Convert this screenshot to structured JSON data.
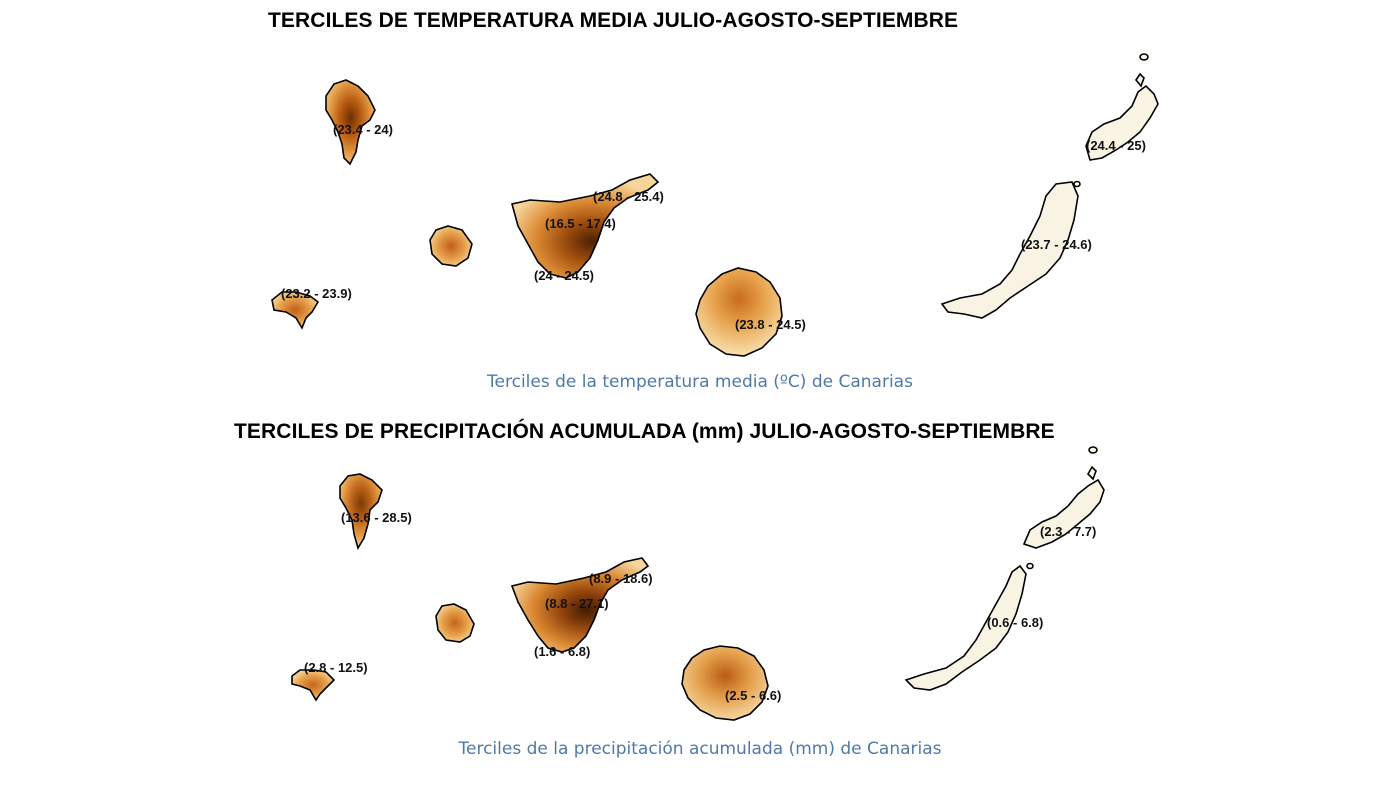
{
  "temperature_map": {
    "title": "TERCILES DE TEMPERATURA MEDIA JULIO-AGOSTO-SEPTIEMBRE",
    "caption": "Terciles de la temperatura media (ºC) de Canarias",
    "labels": {
      "la_palma": "(23.4 - 24)",
      "el_hierro": "(23.2 - 23.9)",
      "tenerife_north": "(24.8 - 25.4)",
      "tenerife_center": "(16.5 - 17.4)",
      "tenerife_south": "(24 - 24.5)",
      "gran_canaria": "(23.8 - 24.5)",
      "lanzarote": "(24.4 - 25)",
      "fuerteventura": "(23.7 - 24.6)"
    }
  },
  "precipitation_map": {
    "title": "TERCILES DE PRECIPITACIÓN ACUMULADA (mm) JULIO-AGOSTO-SEPTIEMBRE",
    "caption": "Terciles de la precipitación acumulada (mm) de Canarias",
    "labels": {
      "la_palma": "(13.6 - 28.5)",
      "el_hierro": "(2.8 - 12.5)",
      "tenerife_north": "(8.9 - 18.6)",
      "tenerife_center": "(8.8 - 27.1)",
      "tenerife_south": "(1.6 - 6.8)",
      "gran_canaria": "(2.5 - 6.6)",
      "lanzarote": "(2.3 - 7.7)",
      "fuerteventura": "(0.6 - 6.8)"
    }
  },
  "colors": {
    "caption": "#4f79a9",
    "warm_dark": "#5a2a06",
    "warm_mid": "#c8640f",
    "warm_light": "#f0c274",
    "pale_island": "#f8f3e2"
  }
}
